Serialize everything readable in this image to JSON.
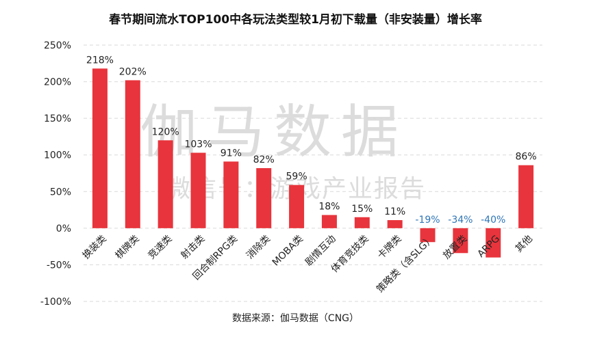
{
  "title": "春节期间流水TOP100中各玩法类型较1月初下载量（非安装量）增长率",
  "source": "数据来源：伽马数据（CNG）",
  "watermark": {
    "main": "伽马数据",
    "sub": "微信号：游戏产业报告"
  },
  "colors": {
    "bar": "#e8343c",
    "positive_label": "#222222",
    "negative_label": "#2e75b6",
    "grid": "#d9d9d9",
    "watermark": "#dcdcdc"
  },
  "chart_data": {
    "type": "bar",
    "categories": [
      "换装类",
      "棋牌类",
      "竞速类",
      "射击类",
      "回合制RPG类",
      "消除类",
      "MOBA类",
      "剧情互动",
      "体育竞技类",
      "卡牌类",
      "策略类（含SLG）",
      "放置类",
      "ARPG",
      "其他"
    ],
    "values": [
      218,
      202,
      120,
      103,
      91,
      82,
      59,
      18,
      15,
      11,
      -19,
      -34,
      -40,
      86
    ],
    "value_labels": [
      "218%",
      "202%",
      "120%",
      "103%",
      "91%",
      "82%",
      "59%",
      "18%",
      "15%",
      "11%",
      "-19%",
      "-34%",
      "-40%",
      "86%"
    ],
    "yticks": [
      250,
      200,
      150,
      100,
      50,
      0,
      -50,
      -100
    ],
    "ytick_labels": [
      "250%",
      "200%",
      "150%",
      "100%",
      "50%",
      "0%",
      "-50%",
      "-100%"
    ],
    "ylim": [
      -100,
      250
    ],
    "grid": true,
    "legend": "none"
  }
}
